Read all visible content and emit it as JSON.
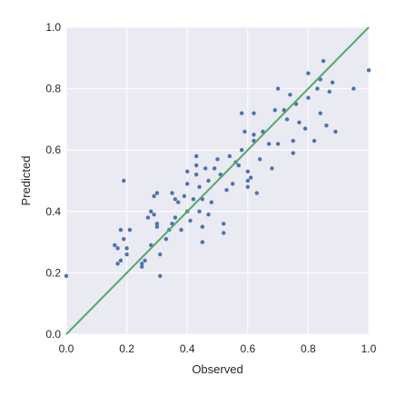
{
  "chart_data": {
    "type": "scatter",
    "title": "",
    "xlabel": "Observed",
    "ylabel": "Predicted",
    "xlim": [
      0.0,
      1.0
    ],
    "ylim": [
      0.0,
      1.0
    ],
    "xticks": [
      "0.0",
      "0.2",
      "0.4",
      "0.6",
      "0.8",
      "1.0"
    ],
    "yticks": [
      "0.0",
      "0.2",
      "0.4",
      "0.6",
      "0.8",
      "1.0"
    ],
    "grid": true,
    "background_color": "#eaeaf2",
    "point_color": "#4c72b0",
    "line_color": "#55a868",
    "reference_line": {
      "from": [
        0.0,
        0.0
      ],
      "to": [
        1.0,
        1.0
      ]
    },
    "points": [
      [
        0.0,
        0.19
      ],
      [
        0.16,
        0.29
      ],
      [
        0.17,
        0.23
      ],
      [
        0.17,
        0.28
      ],
      [
        0.18,
        0.24
      ],
      [
        0.18,
        0.34
      ],
      [
        0.19,
        0.31
      ],
      [
        0.19,
        0.5
      ],
      [
        0.2,
        0.26
      ],
      [
        0.2,
        0.28
      ],
      [
        0.21,
        0.34
      ],
      [
        0.25,
        0.22
      ],
      [
        0.25,
        0.23
      ],
      [
        0.26,
        0.24
      ],
      [
        0.27,
        0.38
      ],
      [
        0.28,
        0.4
      ],
      [
        0.28,
        0.29
      ],
      [
        0.29,
        0.39
      ],
      [
        0.3,
        0.36
      ],
      [
        0.29,
        0.45
      ],
      [
        0.3,
        0.46
      ],
      [
        0.3,
        0.35
      ],
      [
        0.31,
        0.19
      ],
      [
        0.31,
        0.26
      ],
      [
        0.33,
        0.31
      ],
      [
        0.34,
        0.34
      ],
      [
        0.35,
        0.36
      ],
      [
        0.35,
        0.46
      ],
      [
        0.36,
        0.38
      ],
      [
        0.36,
        0.44
      ],
      [
        0.37,
        0.43
      ],
      [
        0.38,
        0.34
      ],
      [
        0.39,
        0.45
      ],
      [
        0.4,
        0.53
      ],
      [
        0.4,
        0.4
      ],
      [
        0.4,
        0.49
      ],
      [
        0.41,
        0.37
      ],
      [
        0.42,
        0.44
      ],
      [
        0.43,
        0.52
      ],
      [
        0.43,
        0.55
      ],
      [
        0.43,
        0.58
      ],
      [
        0.44,
        0.4
      ],
      [
        0.44,
        0.48
      ],
      [
        0.45,
        0.3
      ],
      [
        0.45,
        0.35
      ],
      [
        0.45,
        0.44
      ],
      [
        0.46,
        0.54
      ],
      [
        0.47,
        0.39
      ],
      [
        0.47,
        0.5
      ],
      [
        0.48,
        0.43
      ],
      [
        0.49,
        0.54
      ],
      [
        0.5,
        0.57
      ],
      [
        0.51,
        0.52
      ],
      [
        0.52,
        0.36
      ],
      [
        0.52,
        0.33
      ],
      [
        0.53,
        0.47
      ],
      [
        0.54,
        0.58
      ],
      [
        0.55,
        0.49
      ],
      [
        0.56,
        0.56
      ],
      [
        0.57,
        0.55
      ],
      [
        0.58,
        0.6
      ],
      [
        0.58,
        0.72
      ],
      [
        0.59,
        0.66
      ],
      [
        0.6,
        0.48
      ],
      [
        0.6,
        0.5
      ],
      [
        0.6,
        0.53
      ],
      [
        0.61,
        0.51
      ],
      [
        0.62,
        0.65
      ],
      [
        0.62,
        0.63
      ],
      [
        0.62,
        0.72
      ],
      [
        0.63,
        0.46
      ],
      [
        0.64,
        0.57
      ],
      [
        0.65,
        0.66
      ],
      [
        0.67,
        0.62
      ],
      [
        0.68,
        0.54
      ],
      [
        0.69,
        0.73
      ],
      [
        0.7,
        0.62
      ],
      [
        0.7,
        0.8
      ],
      [
        0.72,
        0.73
      ],
      [
        0.73,
        0.7
      ],
      [
        0.74,
        0.78
      ],
      [
        0.75,
        0.63
      ],
      [
        0.75,
        0.59
      ],
      [
        0.76,
        0.75
      ],
      [
        0.77,
        0.69
      ],
      [
        0.79,
        0.67
      ],
      [
        0.8,
        0.85
      ],
      [
        0.8,
        0.77
      ],
      [
        0.82,
        0.63
      ],
      [
        0.83,
        0.8
      ],
      [
        0.84,
        0.72
      ],
      [
        0.84,
        0.83
      ],
      [
        0.85,
        0.89
      ],
      [
        0.86,
        0.68
      ],
      [
        0.87,
        0.79
      ],
      [
        0.88,
        0.82
      ],
      [
        0.89,
        0.66
      ],
      [
        0.95,
        0.8
      ],
      [
        1.0,
        0.86
      ]
    ]
  }
}
